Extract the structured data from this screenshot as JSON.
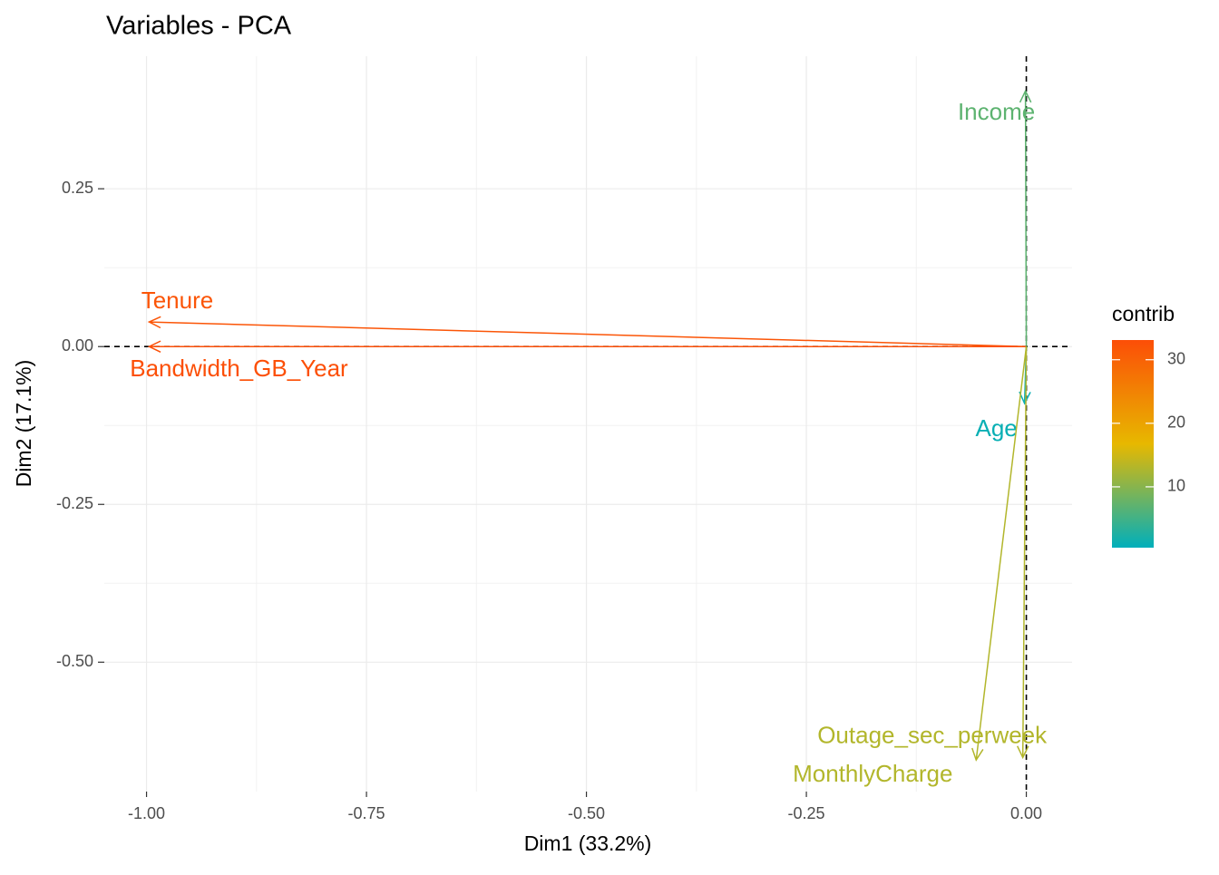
{
  "chart_data": {
    "type": "arrow",
    "title": "Variables - PCA",
    "x_label": "Dim1 (33.2%)",
    "y_label": "Dim2 (17.1%)",
    "xlim": [
      -1.048,
      0.052
    ],
    "ylim": [
      -0.705,
      0.46
    ],
    "xticks": [
      {
        "value": -1,
        "label": "-1.00"
      },
      {
        "value": -0.75,
        "label": "-0.75"
      },
      {
        "value": -0.5,
        "label": "-0.50"
      },
      {
        "value": -0.25,
        "label": "-0.25"
      },
      {
        "value": 0,
        "label": "0.00"
      }
    ],
    "yticks": [
      {
        "value": 0.25,
        "label": "0.25"
      },
      {
        "value": 0,
        "label": "0.00"
      },
      {
        "value": -0.25,
        "label": "-0.25"
      },
      {
        "value": -0.5,
        "label": "-0.50"
      }
    ],
    "grid": true,
    "variables": [
      {
        "name": "Income",
        "x": -0.001,
        "y": 0.405,
        "contrib": 7
      },
      {
        "name": "Tenure",
        "x": -0.997,
        "y": 0.039,
        "contrib": 32
      },
      {
        "name": "Bandwidth_GB_Year",
        "x": -0.997,
        "y": 0.0,
        "contrib": 33
      },
      {
        "name": "Age",
        "x": -0.002,
        "y": -0.09,
        "contrib": 1
      },
      {
        "name": "Outage_sec_perweek",
        "x": -0.004,
        "y": -0.651,
        "contrib": 13
      },
      {
        "name": "MonthlyCharge",
        "x": -0.057,
        "y": -0.655,
        "contrib": 13
      }
    ],
    "colorbar": {
      "title": "contrib",
      "lim": [
        0.43,
        33.1
      ],
      "ticks": [
        10,
        20,
        30
      ],
      "colors": [
        "#00AFBB",
        "#E7B800",
        "#FC4E07"
      ]
    }
  }
}
